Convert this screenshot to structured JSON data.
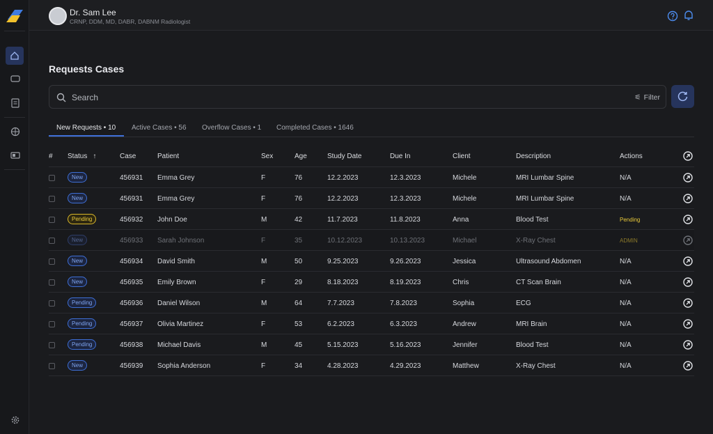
{
  "header": {
    "name": "Dr. Sam Lee",
    "credentials": "CRNP, DDM, MD, DABR, DABNM Radiologist"
  },
  "page_title": "Requests Cases",
  "search": {
    "placeholder": "Search",
    "filter": "Filter"
  },
  "tabs": [
    "New Requests • 10",
    "Active Cases • 56",
    "Overflow Cases • 1",
    "Completed Cases • 1646"
  ],
  "table": {
    "columns": [
      "#",
      "Status",
      "Case",
      "Patient",
      "Sex",
      "Age",
      "Study Date",
      "Due In",
      "Client",
      "Description",
      "Actions"
    ],
    "rows": [
      [
        "New",
        "456931",
        "Emma Grey",
        "F",
        "76",
        "12.2.2023",
        "12.3.2023",
        "Michele",
        "MRI Lumbar Spine",
        "N/A"
      ],
      [
        "New",
        "456931",
        "Emma Grey",
        "F",
        "76",
        "12.2.2023",
        "12.3.2023",
        "Michele",
        "MRI Lumbar Spine",
        "N/A"
      ],
      [
        "Pending",
        "456932",
        "John Doe",
        "M",
        "42",
        "11.7.2023",
        "11.8.2023",
        "Anna",
        "Blood Test",
        "Pending"
      ],
      [
        "New",
        "456933",
        "Sarah Johnson",
        "F",
        "35",
        "10.12.2023",
        "10.13.2023",
        "Michael",
        "X-Ray Chest",
        "ADMIN"
      ],
      [
        "New",
        "456934",
        "David Smith",
        "M",
        "50",
        "9.25.2023",
        "9.26.2023",
        "Jessica",
        "Ultrasound Abdomen",
        "N/A"
      ],
      [
        "New",
        "456935",
        "Emily Brown",
        "F",
        "29",
        "8.18.2023",
        "8.19.2023",
        "Chris",
        "CT Scan Brain",
        "N/A"
      ],
      [
        "Pending",
        "456936",
        "Daniel Wilson",
        "M",
        "64",
        "7.7.2023",
        "7.8.2023",
        "Sophia",
        "ECG",
        "N/A"
      ],
      [
        "Pending",
        "456937",
        "Olivia Martinez",
        "F",
        "53",
        "6.2.2023",
        "6.3.2023",
        "Andrew",
        "MRI Brain",
        "N/A"
      ],
      [
        "Pending",
        "456938",
        "Michael Davis",
        "M",
        "45",
        "5.15.2023",
        "5.16.2023",
        "Jennifer",
        "Blood Test",
        "N/A"
      ],
      [
        "New",
        "456939",
        "Sophia Anderson",
        "F",
        "34",
        "4.28.2023",
        "4.29.2023",
        "Matthew",
        "X-Ray Chest",
        "N/A"
      ]
    ]
  }
}
